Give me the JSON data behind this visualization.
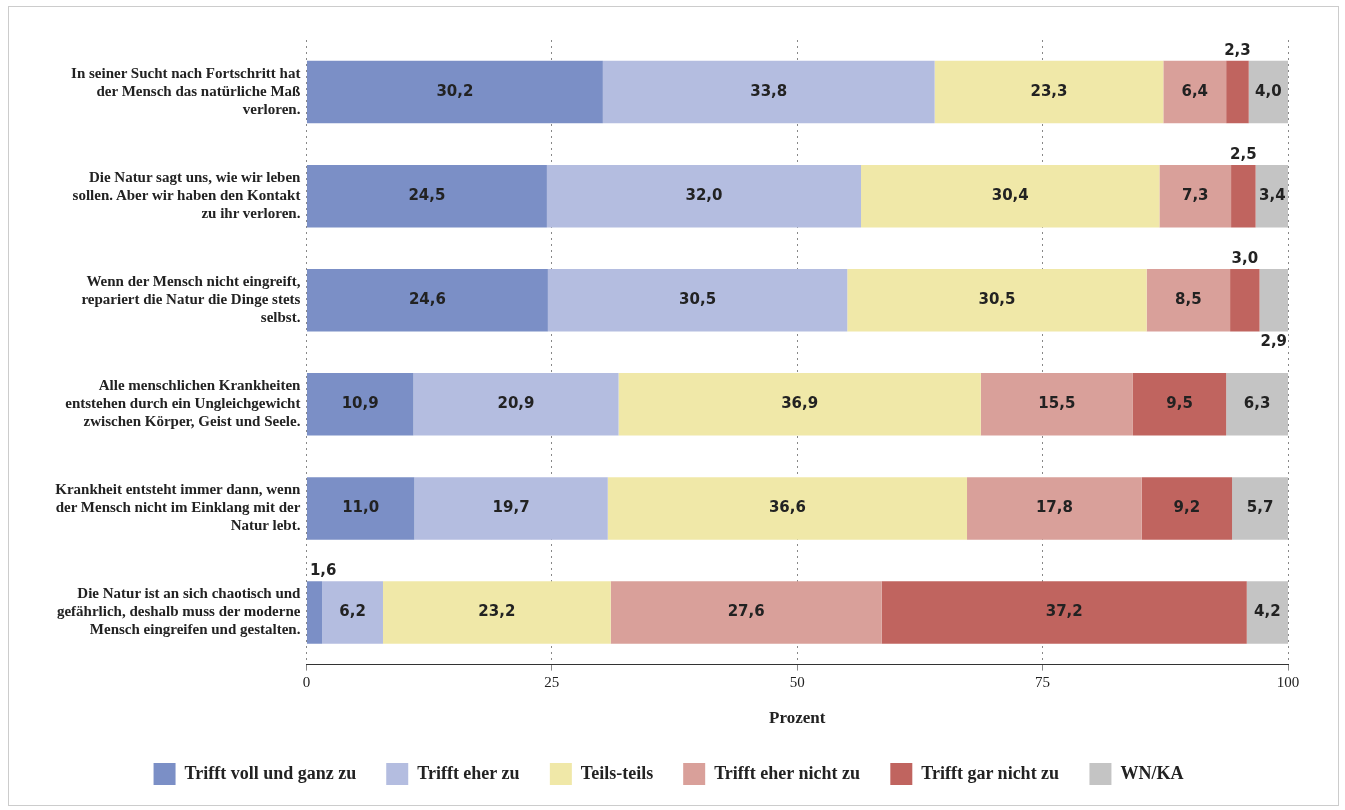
{
  "chart_data": {
    "type": "bar",
    "orientation": "horizontal",
    "stacked": true,
    "categories": [
      "In seiner Sucht nach Fortschritt hat der Mensch das natürliche Maß verloren.",
      "Die Natur sagt uns, wie wir leben sollen. Aber wir haben den Kontakt zu ihr verloren.",
      "Wenn der Mensch nicht eingreift, repariert die Natur die Dinge stets selbst.",
      "Alle menschlichen Krankheiten entstehen durch ein Ungleichgewicht zwischen Körper, Geist und Seele.",
      "Krankheit entsteht immer dann, wenn der Mensch nicht im Einklang mit der Natur lebt.",
      "Die Natur ist an sich chaotisch und gefährlich, deshalb muss der moderne Mensch eingreifen und gestalten."
    ],
    "series": [
      {
        "name": "Trifft voll und ganz zu",
        "color": "#7b8fc6",
        "values": [
          30.2,
          24.5,
          24.6,
          10.9,
          11.0,
          1.6
        ],
        "value_labels": [
          "30,2",
          "24,5",
          "24,6",
          "10,9",
          "11,0",
          "1,6"
        ]
      },
      {
        "name": "Trifft eher zu",
        "color": "#b4bde0",
        "values": [
          33.8,
          32.0,
          30.5,
          20.9,
          19.7,
          6.2
        ],
        "value_labels": [
          "33,8",
          "32,0",
          "30,5",
          "20,9",
          "19,7",
          "6,2"
        ]
      },
      {
        "name": "Teils-teils",
        "color": "#f0e8a8",
        "values": [
          23.3,
          30.4,
          30.5,
          36.9,
          36.6,
          23.2
        ],
        "value_labels": [
          "23,3",
          "30,4",
          "30,5",
          "36,9",
          "36,6",
          "23,2"
        ]
      },
      {
        "name": "Trifft eher nicht zu",
        "color": "#d9a09a",
        "values": [
          6.4,
          7.3,
          8.5,
          15.5,
          17.8,
          27.6
        ],
        "value_labels": [
          "6,4",
          "7,3",
          "8,5",
          "15,5",
          "17,8",
          "27,6"
        ]
      },
      {
        "name": "Trifft gar nicht zu",
        "color": "#c0645f",
        "values": [
          2.3,
          2.5,
          3.0,
          9.5,
          9.2,
          37.2
        ],
        "value_labels": [
          "2,3",
          "2,5",
          "3,0",
          "9,5",
          "9,2",
          "37,2"
        ]
      },
      {
        "name": "WN/KA",
        "color": "#c4c4c4",
        "values": [
          4.0,
          3.4,
          2.9,
          6.3,
          5.7,
          4.2
        ],
        "value_labels": [
          "4,0",
          "3,4",
          "2,9",
          "6,3",
          "5,7",
          "4,2"
        ]
      }
    ],
    "xlabel": "Prozent",
    "xlim": [
      0,
      100
    ],
    "xticks": [
      0,
      25,
      50,
      75,
      100
    ],
    "grid": "x",
    "legend": "bottom"
  }
}
